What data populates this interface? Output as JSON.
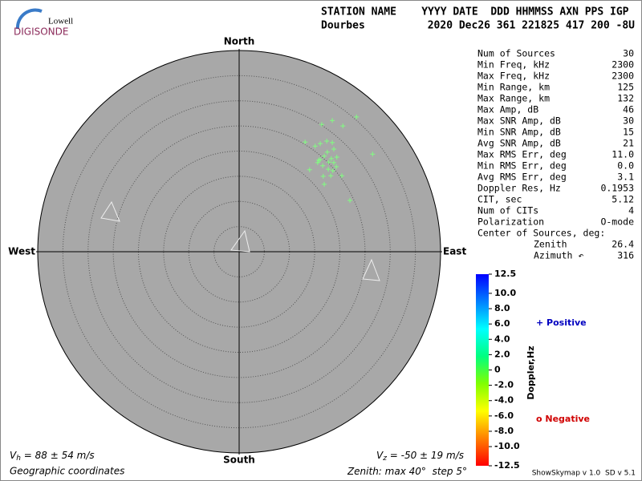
{
  "logo": {
    "top": "Lowell",
    "bottom": "DIGISONDE"
  },
  "header": {
    "columns": "STATION NAME    YYYY DATE  DDD HHMMSS AXN PPS IGP",
    "station": "Dourbes",
    "values": "2020 Dec26 361 221825 417 200 -8U"
  },
  "stats": {
    "rows": [
      [
        "Num of Sources",
        "30"
      ],
      [
        "Min Freq, kHz",
        "2300"
      ],
      [
        "Max Freq, kHz",
        "2300"
      ],
      [
        "Min Range, km",
        "125"
      ],
      [
        "Max Range, km",
        "132"
      ],
      [
        "Max Amp, dB",
        "46"
      ],
      [
        "Max SNR Amp, dB",
        "30"
      ],
      [
        "Min SNR Amp, dB",
        "15"
      ],
      [
        "Avg SNR Amp, dB",
        "21"
      ],
      [
        "Max RMS Err, deg",
        "11.0"
      ],
      [
        "Min RMS Err, deg",
        "0.0"
      ],
      [
        "Avg RMS Err, deg",
        "3.1"
      ],
      [
        "Doppler Res, Hz",
        "0.1953"
      ],
      [
        "CIT, sec",
        "5.12"
      ],
      [
        "Num of CITs",
        "4"
      ],
      [
        "Polarization",
        "O-mode"
      ]
    ],
    "center_title": "Center of Sources, deg:",
    "center_rows": [
      [
        "Zenith",
        "26.4"
      ],
      [
        "Azimuth ↶",
        "316"
      ]
    ]
  },
  "chart_data": {
    "type": "skymap",
    "directions": {
      "north": "North",
      "south": "South",
      "east": "East",
      "west": "West"
    },
    "zenith_max": 40,
    "zenith_step": 5,
    "grid": true,
    "color": "#80ff80",
    "x": [
      16.4,
      18.5,
      20.6,
      23.3,
      13.1,
      15.1,
      16.1,
      17.4,
      18.5,
      18.8,
      26.5,
      17.5,
      16.9,
      15.8,
      15.6,
      18.3,
      18.8,
      19.3,
      14.0,
      16.6,
      17.7,
      18.6,
      16.7,
      18.2,
      20.4,
      16.9,
      22.0,
      19.4,
      17.8,
      16.1
    ],
    "y": [
      25.3,
      26.1,
      25.0,
      26.8,
      21.8,
      21.0,
      21.5,
      22.0,
      21.7,
      20.4,
      19.4,
      19.8,
      19.0,
      18.2,
      17.7,
      18.5,
      17.7,
      16.9,
      16.3,
      17.1,
      16.4,
      16.1,
      15.0,
      15.1,
      15.1,
      13.4,
      10.2,
      18.8,
      17.8,
      18.3
    ],
    "colorbar": {
      "title": "Doppler,Hz",
      "lim": [
        -12.5,
        12.5
      ],
      "colors": [
        "#ff0000",
        "#ff8000",
        "#ffff00",
        "#80ff00",
        "#00ff80",
        "#00ffff",
        "#0080ff",
        "#0000ff"
      ],
      "ticks": [
        12.5,
        {
          "value": 10,
          "label": "10.0"
        },
        {
          "value": 8,
          "label": "8.0"
        },
        {
          "value": 6,
          "label": "6.0"
        },
        {
          "value": 4,
          "label": "4.0"
        },
        {
          "value": 2,
          "label": "2.0"
        },
        0,
        {
          "value": -2,
          "label": "-2.0"
        },
        {
          "value": -4,
          "label": "-4.0"
        },
        {
          "value": -6,
          "label": "-6.0"
        },
        {
          "value": -8,
          "label": "-8.0"
        },
        {
          "value": -10,
          "label": "-10.0"
        },
        -12.5
      ]
    },
    "legend": {
      "positive": "+ Positive",
      "negative": "o Negative"
    },
    "velocity": {
      "vh_symbol": "V",
      "vh_sub": "h",
      "vh_text": " = 88 ± 54 m/s",
      "vz_symbol": "V",
      "vz_sub": "z",
      "vz_text": " = -50 ± 19 m/s"
    },
    "footer": {
      "coords": "Geographic coordinates",
      "zenith_prefix": "Zenith: max",
      "degree": "°",
      "step_label": "step",
      "version": "ShowSkymap v 1.0  SD v 5.1"
    }
  }
}
